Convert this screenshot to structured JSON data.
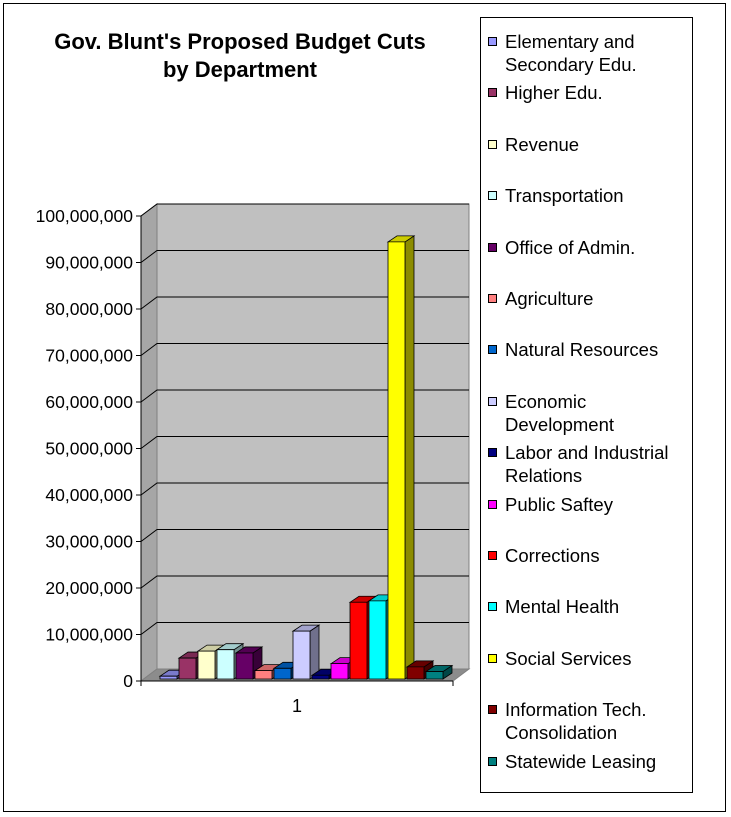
{
  "chart_data": {
    "type": "bar",
    "title": "Gov. Blunt's Proposed Budget Cuts by Department",
    "categories": [
      "1"
    ],
    "ylim": [
      0,
      100000000
    ],
    "yticks": [
      "0",
      "10,000,000",
      "20,000,000",
      "30,000,000",
      "40,000,000",
      "50,000,000",
      "60,000,000",
      "70,000,000",
      "80,000,000",
      "90,000,000",
      "100,000,000"
    ],
    "grid": true,
    "legend_position": "right",
    "series": [
      {
        "name": "Elementary and Secondary Edu.",
        "values": [
          600000
        ],
        "color": "#9999ff"
      },
      {
        "name": "Higher Edu.",
        "values": [
          4500000
        ],
        "color": "#993366"
      },
      {
        "name": "Revenue",
        "values": [
          6000000
        ],
        "color": "#ffffcc"
      },
      {
        "name": "Transportation",
        "values": [
          6300000
        ],
        "color": "#ccffff"
      },
      {
        "name": "Office of Admin.",
        "values": [
          5600000
        ],
        "color": "#660066"
      },
      {
        "name": "Agriculture",
        "values": [
          1800000
        ],
        "color": "#ff8080"
      },
      {
        "name": "Natural Resources",
        "values": [
          2300000
        ],
        "color": "#0066cc"
      },
      {
        "name": "Economic Development",
        "values": [
          10300000
        ],
        "color": "#ccccff"
      },
      {
        "name": "Labor and Industrial Relations",
        "values": [
          800000
        ],
        "color": "#000080"
      },
      {
        "name": "Public Saftey",
        "values": [
          3300000
        ],
        "color": "#ff00ff"
      },
      {
        "name": "Corrections",
        "values": [
          16500000
        ],
        "color": "#ff0000"
      },
      {
        "name": "Mental Health",
        "values": [
          16800000
        ],
        "color": "#00ffff"
      },
      {
        "name": "Social Services",
        "values": [
          94000000
        ],
        "color": "#ffff00"
      },
      {
        "name": "Information Tech. Consolidation",
        "values": [
          2600000
        ],
        "color": "#800000"
      },
      {
        "name": "Statewide Leasing",
        "values": [
          1600000
        ],
        "color": "#008080"
      }
    ]
  }
}
